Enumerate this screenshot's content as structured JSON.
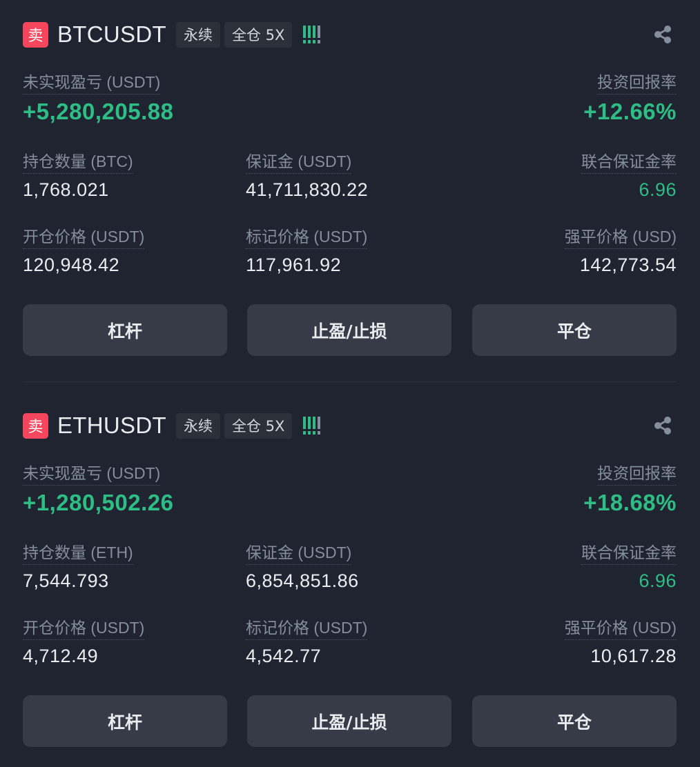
{
  "colors": {
    "background": "#1f2430",
    "positive": "#2ebd85",
    "sell": "#f6465d",
    "button": "#363b47",
    "muted": "#848e9c"
  },
  "positions": [
    {
      "side": "卖",
      "symbol": "BTCUSDT",
      "tags": [
        "永续",
        "全仓 5X"
      ],
      "signal_level": 3,
      "signal_max": 4,
      "share_icon": "share-icon",
      "pnl_label": "未实现盈亏 (USDT)",
      "pnl_value": "+5,280,205.88",
      "roe_label": "投资回报率",
      "roe_value": "+12.66%",
      "size_label": "持仓数量 (BTC)",
      "size_value": "1,768.021",
      "margin_label": "保证金 (USDT)",
      "margin_value": "41,711,830.22",
      "margin_ratio_label": "联合保证金率",
      "margin_ratio_value": "6.96",
      "entry_label": "开仓价格 (USDT)",
      "entry_value": "120,948.42",
      "mark_label": "标记价格 (USDT)",
      "mark_value": "117,961.92",
      "liq_label": "强平价格 (USD)",
      "liq_value": "142,773.54",
      "buttons": [
        "杠杆",
        "止盈/止损",
        "平仓"
      ]
    },
    {
      "side": "卖",
      "symbol": "ETHUSDT",
      "tags": [
        "永续",
        "全仓 5X"
      ],
      "signal_level": 3,
      "signal_max": 4,
      "share_icon": "share-icon",
      "pnl_label": "未实现盈亏 (USDT)",
      "pnl_value": "+1,280,502.26",
      "roe_label": "投资回报率",
      "roe_value": "+18.68%",
      "size_label": "持仓数量 (ETH)",
      "size_value": "7,544.793",
      "margin_label": "保证金 (USDT)",
      "margin_value": "6,854,851.86",
      "margin_ratio_label": "联合保证金率",
      "margin_ratio_value": "6.96",
      "entry_label": "开仓价格 (USDT)",
      "entry_value": "4,712.49",
      "mark_label": "标记价格 (USDT)",
      "mark_value": "4,542.77",
      "liq_label": "强平价格 (USD)",
      "liq_value": "10,617.28",
      "buttons": [
        "杠杆",
        "止盈/止损",
        "平仓"
      ]
    }
  ]
}
